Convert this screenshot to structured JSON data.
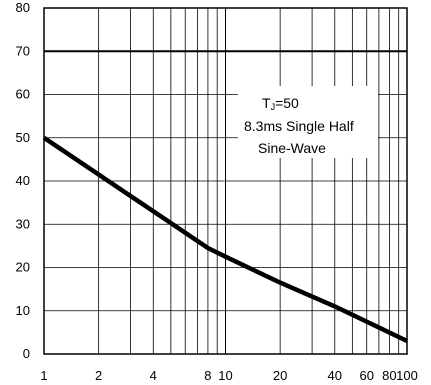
{
  "chart_data": {
    "type": "line",
    "title": "",
    "xlabel": "",
    "ylabel": "",
    "xscale": "log",
    "xlim": [
      1,
      100
    ],
    "ylim": [
      0,
      80
    ],
    "x_ticks": [
      1,
      2,
      4,
      8,
      10,
      20,
      40,
      60,
      80,
      100
    ],
    "x_tick_labels": [
      "1",
      "2",
      "4",
      "8",
      "10",
      "20",
      "40",
      "60",
      "80",
      "100"
    ],
    "y_ticks": [
      0,
      10,
      20,
      30,
      40,
      50,
      60,
      70,
      80
    ],
    "y_tick_labels": [
      "0",
      "10",
      "20",
      "30",
      "40",
      "50",
      "60",
      "70",
      "80"
    ],
    "grid": true,
    "reference_line": {
      "y": 70
    },
    "series": [
      {
        "x": [
          1,
          2,
          4,
          8,
          10,
          20,
          40,
          100
        ],
        "y": [
          50,
          41.5,
          33,
          24.5,
          22.5,
          16.5,
          11,
          3
        ],
        "color": "#000000"
      }
    ],
    "annotation": {
      "line1_symbol": "T",
      "line1_subscript": "J",
      "line1_value": "=50",
      "line2": "8.3ms Single Half",
      "line3": "Sine-Wave"
    }
  }
}
